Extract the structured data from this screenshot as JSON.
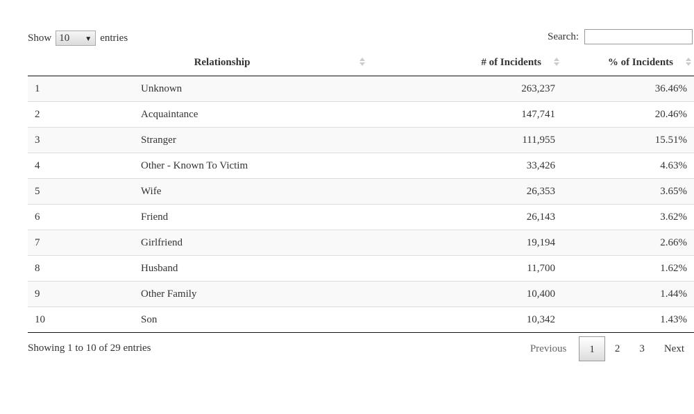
{
  "controls": {
    "show_label": "Show",
    "entries_value": "10",
    "entries_label": "entries",
    "search_label": "Search:",
    "search_value": ""
  },
  "table": {
    "columns": [
      "",
      "Relationship",
      "# of Incidents",
      "% of Incidents"
    ],
    "rows": [
      [
        "1",
        "Unknown",
        "263,237",
        "36.46%"
      ],
      [
        "2",
        "Acquaintance",
        "147,741",
        "20.46%"
      ],
      [
        "3",
        "Stranger",
        "111,955",
        "15.51%"
      ],
      [
        "4",
        "Other - Known To Victim",
        "33,426",
        "4.63%"
      ],
      [
        "5",
        "Wife",
        "26,353",
        "3.65%"
      ],
      [
        "6",
        "Friend",
        "26,143",
        "3.62%"
      ],
      [
        "7",
        "Girlfriend",
        "19,194",
        "2.66%"
      ],
      [
        "8",
        "Husband",
        "11,700",
        "1.62%"
      ],
      [
        "9",
        "Other Family",
        "10,400",
        "1.44%"
      ],
      [
        "10",
        "Son",
        "10,342",
        "1.43%"
      ]
    ]
  },
  "footer": {
    "info": "Showing 1 to 10 of 29 entries",
    "previous": "Previous",
    "pages": [
      "1",
      "2",
      "3"
    ],
    "next": "Next"
  }
}
